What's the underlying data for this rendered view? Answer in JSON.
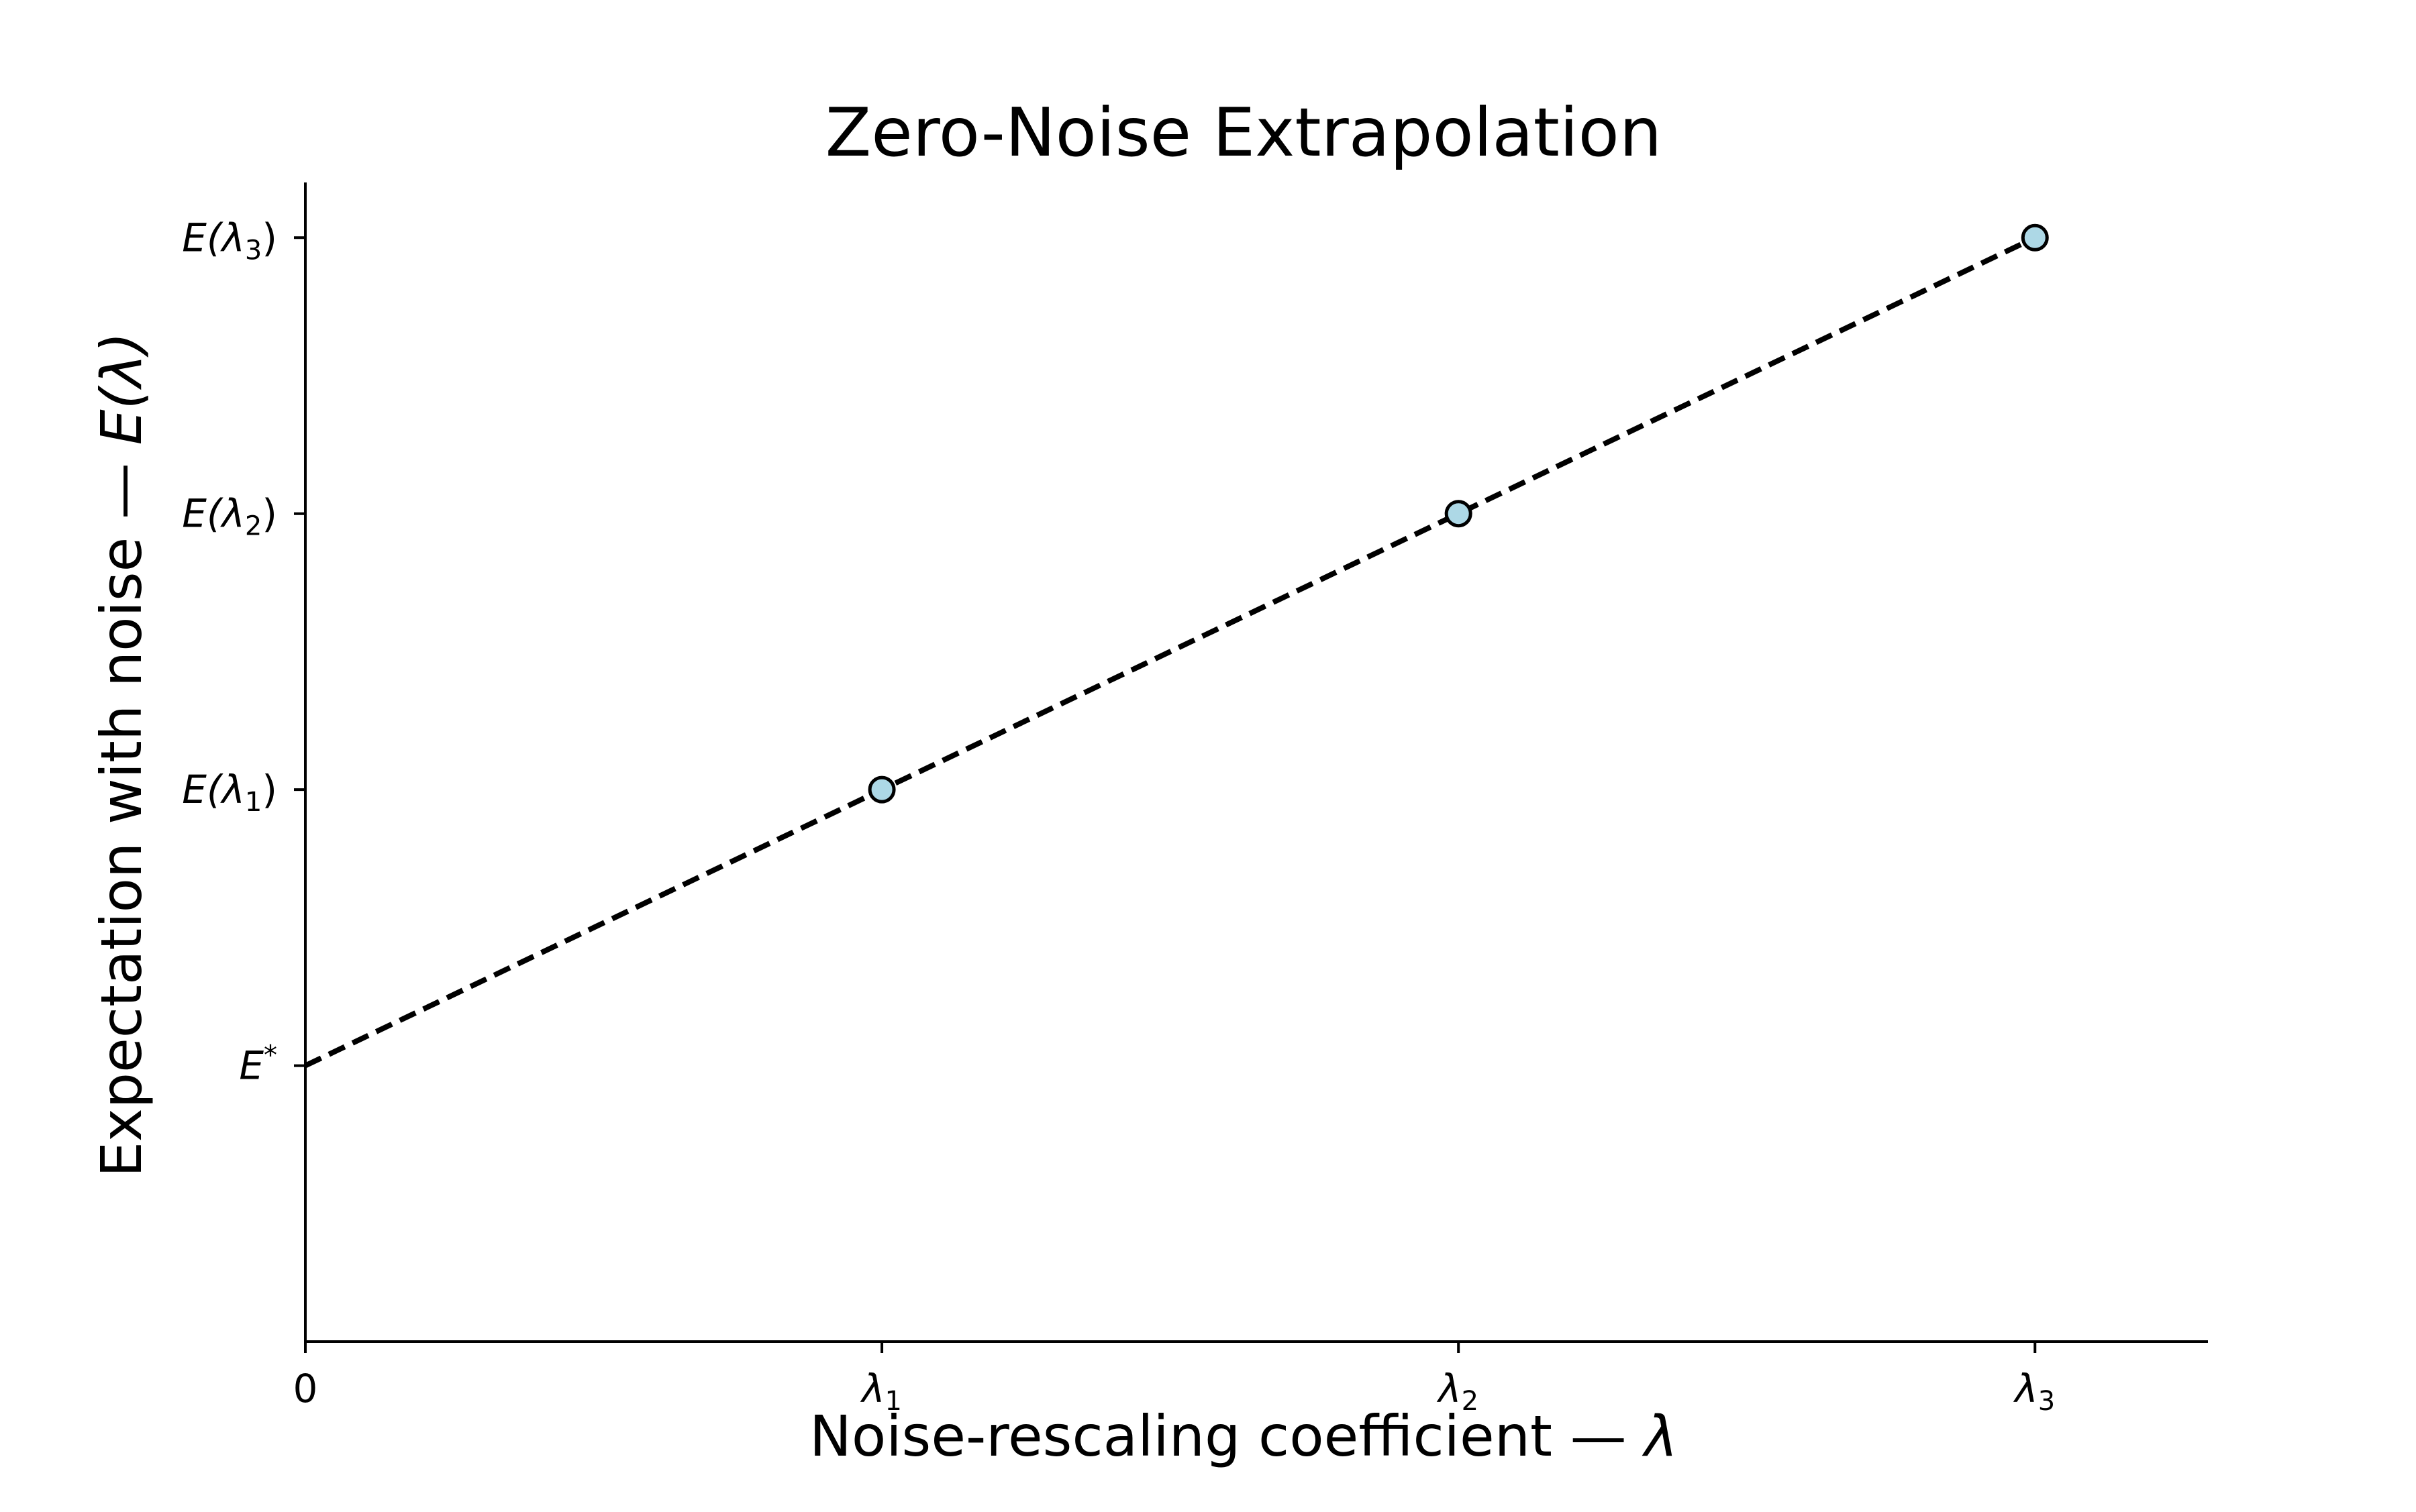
{
  "chart_data": {
    "type": "scatter",
    "title": "Zero-Noise Extrapolation",
    "xlabel_text": "Noise-rescaling coefficient — ",
    "xlabel_symbol": "λ",
    "ylabel_text": "Expectation with noise — ",
    "ylabel_symbol": "E(λ)",
    "xlim": [
      0,
      3.3
    ],
    "ylim": [
      -1,
      3.2
    ],
    "x_ticks": [
      {
        "value": 0,
        "label": "0",
        "italic": false,
        "sub": ""
      },
      {
        "value": 1,
        "label": "λ",
        "italic": true,
        "sub": "1"
      },
      {
        "value": 2,
        "label": "λ",
        "italic": true,
        "sub": "2"
      },
      {
        "value": 3,
        "label": "λ",
        "italic": true,
        "sub": "3"
      }
    ],
    "y_ticks": [
      {
        "value": 0,
        "label": "E",
        "sup": "*",
        "sub": "",
        "close": ""
      },
      {
        "value": 1,
        "label": "E(λ",
        "sup": "",
        "sub": "1",
        "close": ")"
      },
      {
        "value": 2,
        "label": "E(λ",
        "sup": "",
        "sub": "2",
        "close": ")"
      },
      {
        "value": 3,
        "label": "E(λ",
        "sup": "",
        "sub": "3",
        "close": ")"
      }
    ],
    "series": [
      {
        "points": [
          {
            "x": 1,
            "y": 1
          },
          {
            "x": 2,
            "y": 2
          },
          {
            "x": 3,
            "y": 3
          }
        ],
        "marker_color": "#add8e6",
        "edge_color": "#000000"
      }
    ],
    "fit_line": {
      "x": [
        0,
        3
      ],
      "y": [
        0,
        3
      ],
      "style": "dashed",
      "color": "#000000"
    },
    "grid": false,
    "spines": [
      "left",
      "bottom"
    ]
  }
}
